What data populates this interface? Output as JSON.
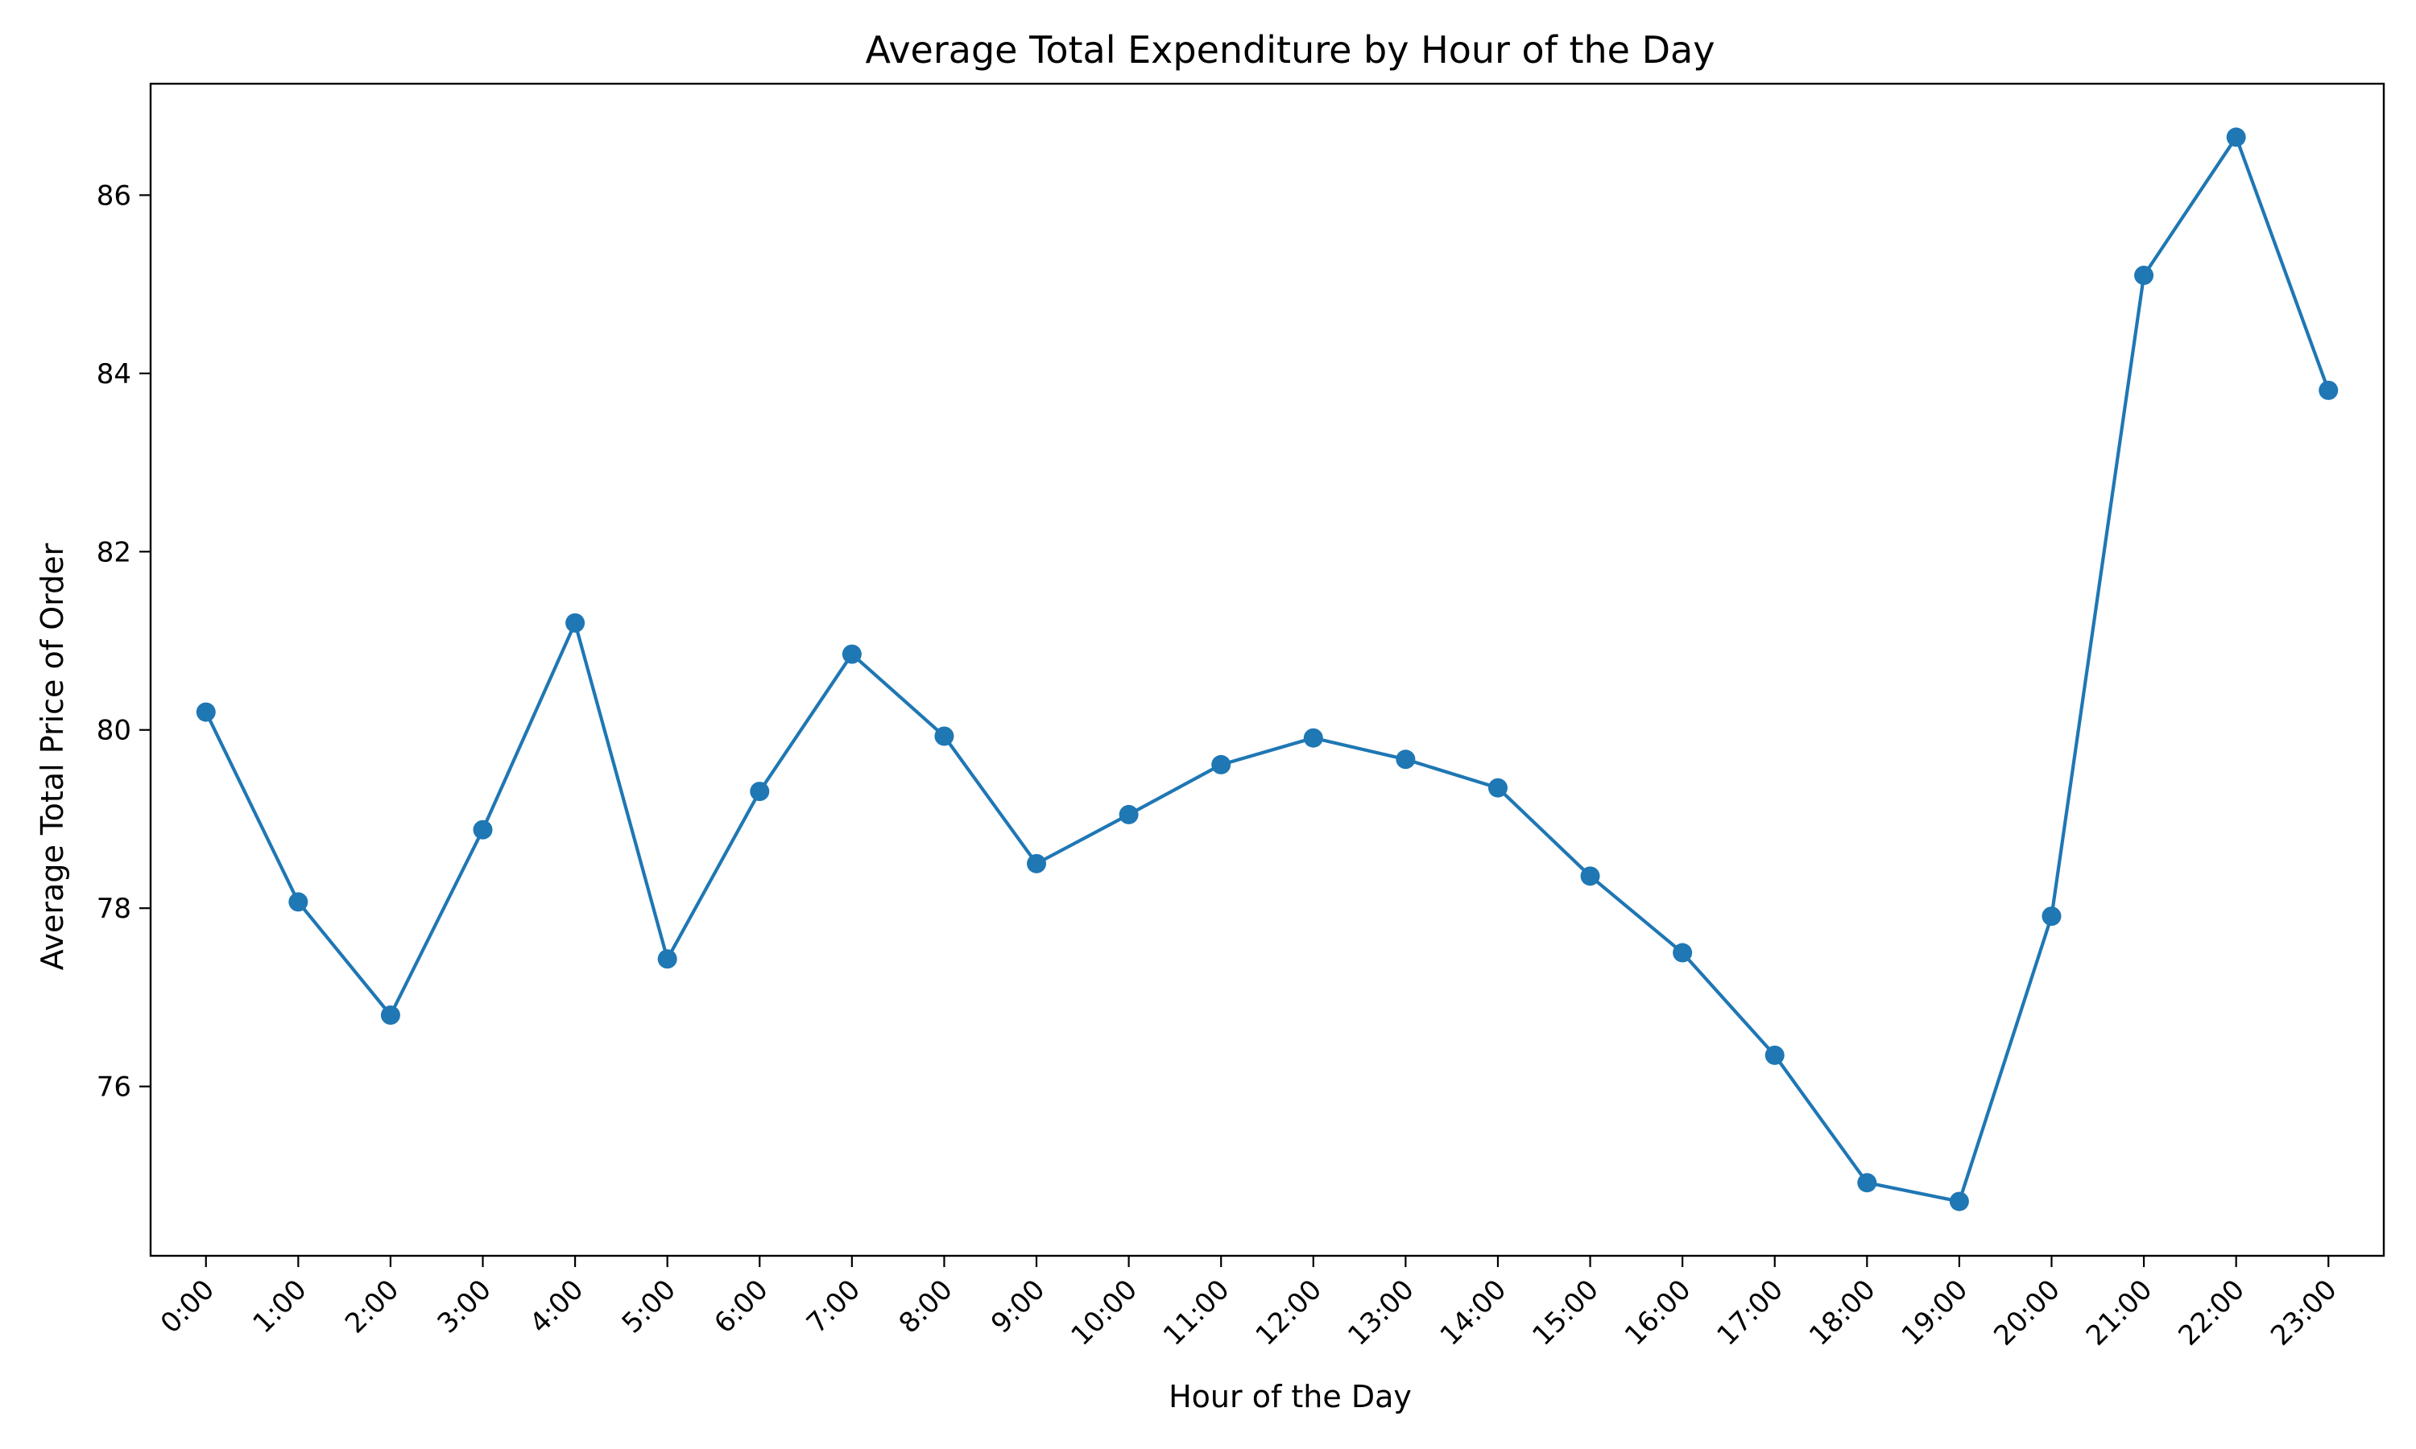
{
  "chart_data": {
    "type": "line",
    "title": "Average Total Expenditure by Hour of the Day",
    "xlabel": "Hour of the Day",
    "ylabel": "Average Total Price of Order",
    "categories": [
      "0:00",
      "1:00",
      "2:00",
      "3:00",
      "4:00",
      "5:00",
      "6:00",
      "7:00",
      "8:00",
      "9:00",
      "10:00",
      "11:00",
      "12:00",
      "13:00",
      "14:00",
      "15:00",
      "16:00",
      "17:00",
      "18:00",
      "19:00",
      "20:00",
      "21:00",
      "22:00",
      "23:00"
    ],
    "series": [
      {
        "values": [
          80.2,
          78.07,
          76.8,
          78.88,
          81.2,
          77.43,
          79.31,
          80.85,
          79.93,
          78.5,
          79.05,
          79.61,
          79.91,
          79.67,
          79.35,
          78.36,
          77.5,
          76.35,
          74.92,
          74.71,
          77.91,
          85.1,
          86.65,
          83.81
        ],
        "color": "#1f77b4",
        "marker": "circle"
      }
    ],
    "yticks": [
      76,
      78,
      80,
      82,
      84,
      86
    ],
    "ylim": [
      74.1,
      87.25
    ],
    "grid": false,
    "legend": "none"
  }
}
